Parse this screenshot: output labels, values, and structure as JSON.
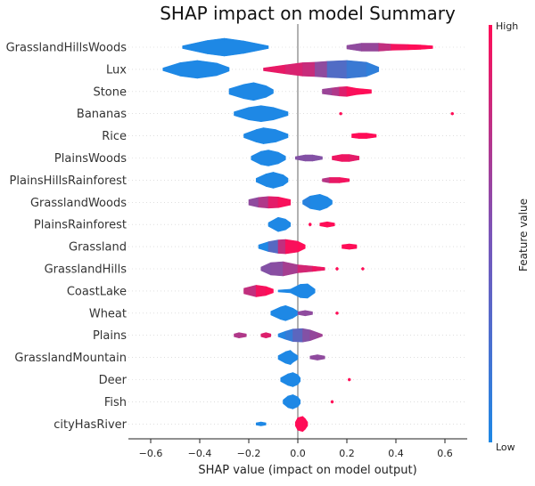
{
  "chart_data": {
    "type": "violin",
    "title": "SHAP impact on model Summary",
    "xlabel": "SHAP value (impact on model output)",
    "xlim": [
      -0.65,
      0.69
    ],
    "xticks": [
      -0.6,
      -0.4,
      -0.2,
      0.0,
      0.2,
      0.4,
      0.6
    ],
    "xtick_labels": [
      "−0.6",
      "−0.4",
      "−0.2",
      "0.0",
      "0.2",
      "0.4",
      "0.6"
    ],
    "grid": false,
    "colorbar": {
      "label": "Feature value",
      "high_label": "High",
      "low_label": "Low",
      "low_color": "#1e88e5",
      "high_color": "#ff0d57"
    },
    "features": [
      {
        "name": "GrasslandHillsWoods",
        "segments": [
          {
            "x": [
              -0.47,
              -0.37,
              -0.3,
              -0.22,
              -0.12
            ],
            "w": [
              0.15,
              0.75,
              1.0,
              0.7,
              0.15
            ],
            "c": [
              0.0,
              0.0,
              0.0,
              0.0,
              0.0
            ]
          },
          {
            "x": [
              0.2,
              0.26,
              0.33,
              0.38,
              0.45,
              0.5,
              0.55
            ],
            "w": [
              0.2,
              0.45,
              0.45,
              0.35,
              0.3,
              0.25,
              0.15
            ],
            "c": [
              0.5,
              0.5,
              0.55,
              0.9,
              1.0,
              1.0,
              1.0
            ]
          }
        ]
      },
      {
        "name": "Lux",
        "segments": [
          {
            "x": [
              -0.55,
              -0.48,
              -0.41,
              -0.33,
              -0.28
            ],
            "w": [
              0.15,
              0.75,
              1.0,
              0.7,
              0.2
            ],
            "c": [
              0.0,
              0.0,
              0.0,
              0.0,
              0.0
            ]
          },
          {
            "x": [
              -0.14,
              -0.05,
              0.02,
              0.07,
              0.12,
              0.2,
              0.28,
              0.33
            ],
            "w": [
              0.15,
              0.5,
              0.75,
              0.8,
              0.9,
              1.0,
              0.8,
              0.25
            ],
            "c": [
              0.95,
              0.85,
              0.8,
              0.7,
              0.3,
              0.15,
              0.1,
              0.05
            ]
          }
        ]
      },
      {
        "name": "Stone",
        "segments": [
          {
            "x": [
              -0.28,
              -0.22,
              -0.18,
              -0.13,
              -0.1
            ],
            "w": [
              0.3,
              0.8,
              1.0,
              0.65,
              0.2
            ],
            "c": [
              0.0,
              0.0,
              0.0,
              0.0,
              0.0
            ]
          },
          {
            "x": [
              0.1,
              0.14,
              0.17,
              0.2,
              0.24,
              0.3
            ],
            "w": [
              0.25,
              0.4,
              0.5,
              0.55,
              0.35,
              0.2
            ],
            "c": [
              0.55,
              0.55,
              0.75,
              0.95,
              1.0,
              1.0
            ]
          }
        ]
      },
      {
        "name": "Bananas",
        "segments": [
          {
            "x": [
              -0.26,
              -0.2,
              -0.15,
              -0.1,
              -0.04
            ],
            "w": [
              0.2,
              0.7,
              0.9,
              0.7,
              0.2
            ],
            "c": [
              0.0,
              0.0,
              0.0,
              0.0,
              0.0
            ]
          },
          {
            "x": [
              0.17,
              0.175,
              0.18
            ],
            "w": [
              0.08,
              0.15,
              0.08
            ],
            "c": [
              1.0,
              1.0,
              1.0
            ]
          },
          {
            "x": [
              0.625,
              0.63,
              0.635
            ],
            "w": [
              0.08,
              0.15,
              0.08
            ],
            "c": [
              1.0,
              1.0,
              1.0
            ]
          }
        ]
      },
      {
        "name": "Rice",
        "segments": [
          {
            "x": [
              -0.22,
              -0.17,
              -0.14,
              -0.09,
              -0.04
            ],
            "w": [
              0.2,
              0.7,
              0.9,
              0.7,
              0.2
            ],
            "c": [
              0.0,
              0.0,
              0.0,
              0.0,
              0.0
            ]
          },
          {
            "x": [
              0.22,
              0.25,
              0.28,
              0.32
            ],
            "w": [
              0.2,
              0.3,
              0.3,
              0.15
            ],
            "c": [
              1.0,
              1.0,
              1.0,
              1.0
            ]
          }
        ]
      },
      {
        "name": "PlainsWoods",
        "segments": [
          {
            "x": [
              -0.19,
              -0.15,
              -0.12,
              -0.08,
              -0.05
            ],
            "w": [
              0.2,
              0.75,
              0.9,
              0.65,
              0.2
            ],
            "c": [
              0.0,
              0.0,
              0.0,
              0.0,
              0.0
            ]
          },
          {
            "x": [
              -0.01,
              0.03,
              0.06,
              0.1
            ],
            "w": [
              0.15,
              0.35,
              0.35,
              0.15
            ],
            "c": [
              0.45,
              0.45,
              0.45,
              0.45
            ]
          },
          {
            "x": [
              0.14,
              0.18,
              0.21,
              0.25
            ],
            "w": [
              0.2,
              0.4,
              0.4,
              0.2
            ],
            "c": [
              0.9,
              0.95,
              0.9,
              0.85
            ]
          }
        ]
      },
      {
        "name": "PlainsHillsRainforest",
        "segments": [
          {
            "x": [
              -0.17,
              -0.13,
              -0.1,
              -0.06,
              -0.04
            ],
            "w": [
              0.2,
              0.7,
              0.9,
              0.6,
              0.2
            ],
            "c": [
              0.0,
              0.0,
              0.0,
              0.0,
              0.0
            ]
          },
          {
            "x": [
              0.1,
              0.13,
              0.17,
              0.21
            ],
            "w": [
              0.15,
              0.3,
              0.3,
              0.15
            ],
            "c": [
              0.5,
              0.85,
              0.95,
              0.95
            ]
          }
        ]
      },
      {
        "name": "GrasslandWoods",
        "segments": [
          {
            "x": [
              -0.2,
              -0.16,
              -0.12,
              -0.08,
              -0.03
            ],
            "w": [
              0.3,
              0.55,
              0.65,
              0.6,
              0.3
            ],
            "c": [
              0.5,
              0.5,
              0.8,
              0.95,
              1.0
            ]
          },
          {
            "x": [
              0.02,
              0.05,
              0.09,
              0.12,
              0.14
            ],
            "w": [
              0.2,
              0.7,
              0.9,
              0.6,
              0.2
            ],
            "c": [
              0.1,
              0.0,
              0.0,
              0.0,
              0.0
            ]
          }
        ]
      },
      {
        "name": "PlainsRainforest",
        "segments": [
          {
            "x": [
              -0.12,
              -0.09,
              -0.08,
              -0.05,
              -0.03
            ],
            "w": [
              0.2,
              0.65,
              0.8,
              0.6,
              0.2
            ],
            "c": [
              0.0,
              0.0,
              0.0,
              0.0,
              0.0
            ]
          },
          {
            "x": [
              0.045,
              0.05,
              0.055
            ],
            "w": [
              0.08,
              0.18,
              0.08
            ],
            "c": [
              1.0,
              1.0,
              1.0
            ]
          },
          {
            "x": [
              0.09,
              0.12,
              0.15
            ],
            "w": [
              0.15,
              0.3,
              0.15
            ],
            "c": [
              1.0,
              1.0,
              1.0
            ]
          }
        ]
      },
      {
        "name": "Grassland",
        "segments": [
          {
            "x": [
              -0.16,
              -0.12,
              -0.08,
              -0.05,
              0.0,
              0.03
            ],
            "w": [
              0.2,
              0.55,
              0.75,
              0.8,
              0.6,
              0.2
            ],
            "c": [
              0.0,
              0.0,
              0.5,
              0.95,
              1.0,
              1.0
            ]
          },
          {
            "x": [
              0.18,
              0.21,
              0.24
            ],
            "w": [
              0.2,
              0.3,
              0.2
            ],
            "c": [
              1.0,
              1.0,
              1.0
            ]
          }
        ]
      },
      {
        "name": "GrasslandHills",
        "segments": [
          {
            "x": [
              -0.15,
              -0.11,
              -0.06,
              0.0,
              0.06,
              0.11
            ],
            "w": [
              0.2,
              0.7,
              0.8,
              0.45,
              0.3,
              0.15
            ],
            "c": [
              0.45,
              0.45,
              0.5,
              0.7,
              0.9,
              0.95
            ]
          },
          {
            "x": [
              0.155,
              0.16,
              0.165
            ],
            "w": [
              0.08,
              0.18,
              0.08
            ],
            "c": [
              1.0,
              1.0,
              1.0
            ]
          },
          {
            "x": [
              0.26,
              0.265,
              0.27
            ],
            "w": [
              0.08,
              0.16,
              0.08
            ],
            "c": [
              1.0,
              1.0,
              1.0
            ]
          }
        ]
      },
      {
        "name": "CoastLake",
        "segments": [
          {
            "x": [
              -0.22,
              -0.17,
              -0.13,
              -0.1
            ],
            "w": [
              0.3,
              0.65,
              0.5,
              0.2
            ],
            "c": [
              0.55,
              0.9,
              1.0,
              1.0
            ]
          },
          {
            "x": [
              -0.08,
              -0.03,
              0.01,
              0.04,
              0.07
            ],
            "w": [
              0.1,
              0.2,
              0.75,
              0.8,
              0.2
            ],
            "c": [
              0.0,
              0.0,
              0.0,
              0.0,
              0.0
            ]
          }
        ]
      },
      {
        "name": "Wheat",
        "segments": [
          {
            "x": [
              -0.11,
              -0.07,
              -0.05,
              -0.02,
              0.0
            ],
            "w": [
              0.2,
              0.7,
              0.85,
              0.55,
              0.2
            ],
            "c": [
              0.0,
              0.0,
              0.0,
              0.0,
              0.0
            ]
          },
          {
            "x": [
              0.0,
              0.03,
              0.06
            ],
            "w": [
              0.15,
              0.3,
              0.15
            ],
            "c": [
              0.5,
              0.5,
              0.5
            ]
          },
          {
            "x": [
              0.155,
              0.16,
              0.165
            ],
            "w": [
              0.08,
              0.16,
              0.08
            ],
            "c": [
              1.0,
              1.0,
              1.0
            ]
          }
        ]
      },
      {
        "name": "Plains",
        "segments": [
          {
            "x": [
              -0.26,
              -0.24,
              -0.21
            ],
            "w": [
              0.15,
              0.3,
              0.15
            ],
            "c": [
              0.65,
              0.65,
              0.65
            ]
          },
          {
            "x": [
              -0.15,
              -0.13,
              -0.11
            ],
            "w": [
              0.15,
              0.3,
              0.15
            ],
            "c": [
              0.85,
              0.85,
              0.85
            ]
          },
          {
            "x": [
              -0.08,
              -0.05,
              -0.02,
              0.02,
              0.05,
              0.08,
              0.1
            ],
            "w": [
              0.15,
              0.45,
              0.7,
              0.75,
              0.6,
              0.3,
              0.1
            ],
            "c": [
              0.0,
              0.05,
              0.15,
              0.4,
              0.5,
              0.55,
              0.6
            ]
          }
        ]
      },
      {
        "name": "GrasslandMountain",
        "segments": [
          {
            "x": [
              -0.08,
              -0.05,
              -0.03,
              -0.02,
              0.0
            ],
            "w": [
              0.2,
              0.65,
              0.8,
              0.55,
              0.2
            ],
            "c": [
              0.0,
              0.0,
              0.0,
              0.0,
              0.0
            ]
          },
          {
            "x": [
              0.05,
              0.08,
              0.11
            ],
            "w": [
              0.15,
              0.3,
              0.15
            ],
            "c": [
              0.5,
              0.5,
              0.5
            ]
          }
        ]
      },
      {
        "name": "Deer",
        "segments": [
          {
            "x": [
              -0.07,
              -0.04,
              -0.02,
              0.0,
              0.01
            ],
            "w": [
              0.2,
              0.65,
              0.8,
              0.55,
              0.2
            ],
            "c": [
              0.0,
              0.0,
              0.0,
              0.0,
              0.0
            ]
          },
          {
            "x": [
              0.205,
              0.21,
              0.215
            ],
            "w": [
              0.08,
              0.16,
              0.08
            ],
            "c": [
              1.0,
              1.0,
              1.0
            ]
          }
        ]
      },
      {
        "name": "Fish",
        "segments": [
          {
            "x": [
              -0.06,
              -0.04,
              -0.02,
              0.0,
              0.01
            ],
            "w": [
              0.2,
              0.65,
              0.8,
              0.55,
              0.2
            ],
            "c": [
              0.0,
              0.0,
              0.0,
              0.0,
              0.0
            ]
          },
          {
            "x": [
              0.135,
              0.14,
              0.145
            ],
            "w": [
              0.08,
              0.16,
              0.08
            ],
            "c": [
              1.0,
              1.0,
              1.0
            ]
          }
        ]
      },
      {
        "name": "cityHasRiver",
        "segments": [
          {
            "x": [
              -0.17,
              -0.15,
              -0.13
            ],
            "w": [
              0.12,
              0.22,
              0.12
            ],
            "c": [
              0.0,
              0.0,
              0.0
            ]
          },
          {
            "x": [
              -0.01,
              0.0,
              0.02,
              0.03,
              0.04
            ],
            "w": [
              0.2,
              0.7,
              0.85,
              0.6,
              0.2
            ],
            "c": [
              1.0,
              1.0,
              1.0,
              1.0,
              1.0
            ]
          }
        ]
      }
    ]
  }
}
